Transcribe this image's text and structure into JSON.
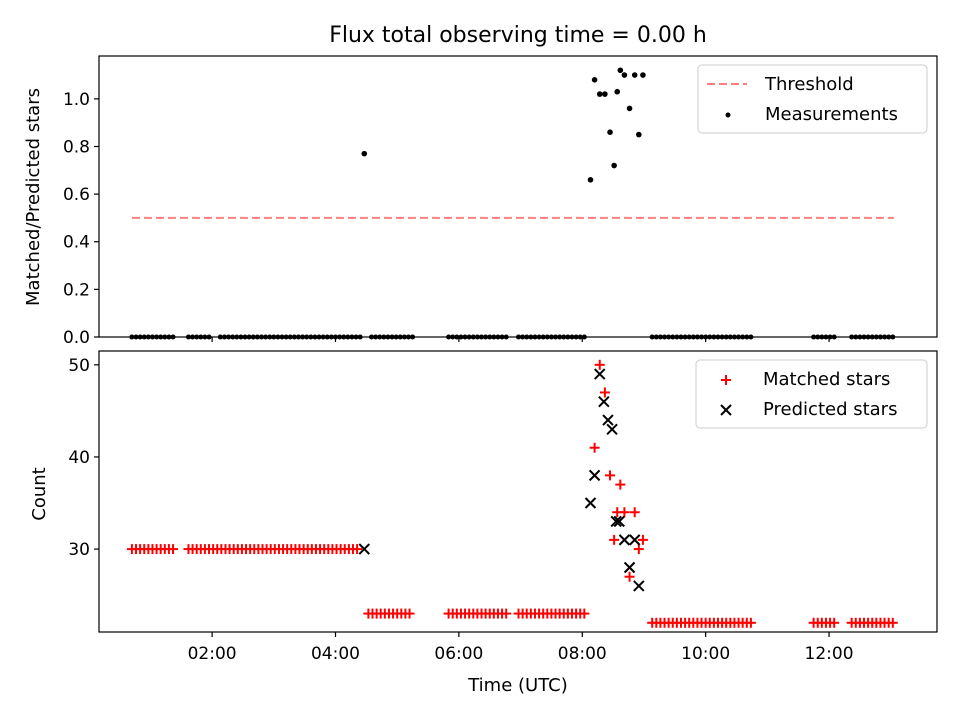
{
  "chart_data": [
    {
      "type": "scatter",
      "title": "Flux total observing time = 0.00 h",
      "ylabel": "Matched/Predicted stars",
      "xlabel": "",
      "xlim": [
        "00:10",
        "13:45"
      ],
      "ylim": [
        0,
        1.18
      ],
      "yticks": [
        "0.0",
        "0.2",
        "0.4",
        "0.6",
        "0.8",
        "1.0"
      ],
      "ytick_values": [
        0,
        0.2,
        0.4,
        0.6,
        0.8,
        1.0
      ],
      "legend_position": "top-right",
      "grid": false,
      "series": [
        {
          "name": "Threshold",
          "kind": "dashed-line",
          "color": "#ff7f7f",
          "x": [
            "00:42",
            "13:03"
          ],
          "y": [
            0.5,
            0.5
          ]
        },
        {
          "name": "Measurements",
          "kind": "points",
          "color": "#000000",
          "zero_runs": [
            [
              "00:42",
              "01:22"
            ],
            [
              "01:37",
              "02:00"
            ],
            [
              "02:08",
              "04:24"
            ],
            [
              "04:35",
              "05:15"
            ],
            [
              "05:50",
              "06:48"
            ],
            [
              "06:58",
              "08:02"
            ],
            [
              "09:08",
              "10:45"
            ],
            [
              "11:45",
              "12:08"
            ],
            [
              "12:22",
              "13:05"
            ]
          ],
          "x": [
            "04:28",
            "08:08",
            "08:12",
            "08:17",
            "08:22",
            "08:27",
            "08:31",
            "08:34",
            "08:37",
            "08:41",
            "08:46",
            "08:51",
            "08:55",
            "08:59"
          ],
          "y": [
            0.77,
            0.66,
            1.08,
            1.02,
            1.02,
            0.86,
            0.72,
            1.03,
            1.12,
            1.1,
            0.96,
            1.1,
            0.85,
            1.1
          ]
        }
      ]
    },
    {
      "type": "scatter",
      "title": "",
      "ylabel": "Count",
      "xlabel": "Time (UTC)",
      "xlim": [
        "00:10",
        "13:45"
      ],
      "ylim": [
        21,
        51.5
      ],
      "yticks": [
        "30",
        "40",
        "50"
      ],
      "ytick_values": [
        30,
        40,
        50
      ],
      "xticks": [
        "02:00",
        "04:00",
        "06:00",
        "08:00",
        "10:00",
        "12:00"
      ],
      "legend_position": "top-right",
      "grid": false,
      "series": [
        {
          "name": "Matched stars",
          "marker": "+",
          "color": "#ff0000",
          "runs": [
            {
              "x": [
                "00:42",
                "01:22"
              ],
              "y": 30
            },
            {
              "x": [
                "01:37",
                "04:22"
              ],
              "y": 30
            },
            {
              "x": [
                "04:32",
                "05:15"
              ],
              "y": 23
            },
            {
              "x": [
                "05:50",
                "06:48"
              ],
              "y": 23
            },
            {
              "x": [
                "06:58",
                "08:05"
              ],
              "y": 23
            },
            {
              "x": [
                "09:08",
                "10:45"
              ],
              "y": 22
            },
            {
              "x": [
                "11:45",
                "12:08"
              ],
              "y": 22
            },
            {
              "x": [
                "12:22",
                "13:05"
              ],
              "y": 22
            }
          ],
          "x": [
            "08:12",
            "08:17",
            "08:22",
            "08:27",
            "08:31",
            "08:34",
            "08:37",
            "08:41",
            "08:46",
            "08:51",
            "08:55",
            "08:59"
          ],
          "y": [
            41,
            50,
            47,
            38,
            31,
            34,
            37,
            34,
            27,
            34,
            30,
            31
          ]
        },
        {
          "name": "Predicted stars",
          "marker": "x",
          "color": "#000000",
          "x": [
            "04:28",
            "08:08",
            "08:12",
            "08:17",
            "08:21",
            "08:25",
            "08:29",
            "08:33",
            "08:36",
            "08:41",
            "08:46",
            "08:51",
            "08:55"
          ],
          "y": [
            30,
            35,
            38,
            49,
            46,
            44,
            43,
            33,
            33,
            31,
            28,
            31,
            26
          ]
        }
      ]
    }
  ]
}
